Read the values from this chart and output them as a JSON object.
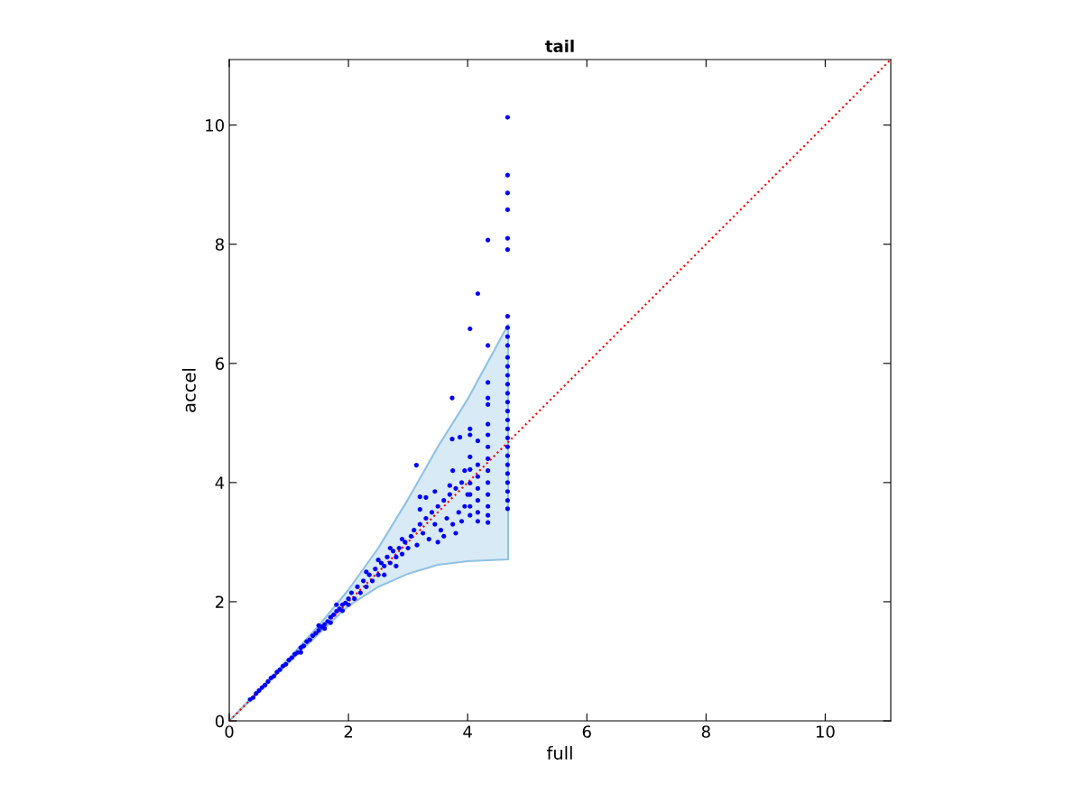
{
  "chart_data": {
    "type": "scatter",
    "title": "tail",
    "xlabel": "full",
    "ylabel": "accel",
    "xlim": [
      0,
      11.1
    ],
    "ylim": [
      0,
      11.1
    ],
    "xticks": [
      0,
      2,
      4,
      6,
      8,
      10
    ],
    "yticks": [
      0,
      2,
      4,
      6,
      8,
      10
    ],
    "grid": false,
    "series": [
      {
        "color": "#0000ff",
        "marker": "circle",
        "x": [
          0.35,
          0.4,
          0.45,
          0.5,
          0.55,
          0.6,
          0.65,
          0.7,
          0.75,
          0.8,
          0.85,
          0.9,
          0.95,
          1.0,
          1.05,
          1.1,
          1.15,
          1.2,
          1.25,
          1.3,
          1.35,
          1.4,
          1.45,
          1.5,
          1.55,
          1.6,
          1.65,
          1.7,
          1.75,
          1.8,
          1.85,
          1.9,
          1.95,
          2.0,
          1.2,
          1.5,
          1.7,
          1.8,
          1.9,
          2.0,
          1.6,
          2.05,
          2.1,
          2.15,
          2.2,
          2.25,
          2.3,
          2.35,
          2.4,
          2.45,
          2.5,
          2.55,
          2.6,
          2.65,
          2.7,
          2.75,
          2.8,
          2.85,
          2.9,
          2.95,
          3.0,
          2.5,
          2.7,
          2.9,
          2.3,
          2.6,
          2.8,
          3.05,
          3.1,
          3.15,
          3.2,
          3.25,
          3.3,
          3.35,
          3.4,
          3.45,
          3.5,
          3.55,
          3.6,
          3.65,
          3.7,
          3.75,
          3.8,
          3.85,
          3.9,
          3.95,
          4.0,
          3.3,
          3.45,
          3.6,
          3.7,
          3.8,
          3.9,
          3.2,
          3.5,
          3.75,
          3.95,
          3.14,
          3.2,
          3.74,
          3.74,
          3.87,
          4.04,
          4.04,
          4.04,
          4.04,
          4.04,
          4.04,
          4.04,
          4.04,
          4.04,
          4.17,
          4.17,
          4.17,
          4.17,
          4.17,
          4.17,
          4.17,
          4.17,
          4.34,
          4.34,
          4.34,
          4.34,
          4.34,
          4.34,
          4.34,
          4.34,
          4.34,
          4.34,
          4.34,
          4.34,
          4.34,
          4.34,
          4.34,
          4.67,
          4.67,
          4.67,
          4.67,
          4.67,
          4.67,
          4.67,
          4.67,
          4.67,
          4.67,
          4.67,
          4.67,
          4.67,
          4.67,
          4.67,
          4.67,
          4.67,
          4.67,
          4.67,
          4.67,
          4.67,
          4.67,
          4.67,
          4.67,
          4.67,
          4.67,
          4.67,
          4.67
        ],
        "values": [
          0.36,
          0.39,
          0.46,
          0.51,
          0.56,
          0.6,
          0.66,
          0.72,
          0.75,
          0.82,
          0.86,
          0.92,
          0.95,
          1.02,
          1.06,
          1.12,
          1.15,
          1.23,
          1.26,
          1.33,
          1.36,
          1.43,
          1.47,
          1.52,
          1.58,
          1.62,
          1.67,
          1.74,
          1.78,
          1.84,
          1.88,
          1.95,
          1.98,
          2.05,
          1.15,
          1.6,
          1.65,
          1.95,
          1.85,
          1.95,
          1.55,
          2.15,
          2.05,
          2.25,
          2.15,
          2.35,
          2.25,
          2.45,
          2.35,
          2.55,
          2.45,
          2.65,
          2.6,
          2.75,
          2.65,
          2.85,
          2.75,
          2.9,
          2.8,
          3.0,
          2.9,
          2.7,
          2.9,
          3.05,
          2.5,
          2.45,
          2.6,
          3.1,
          3.2,
          2.95,
          3.3,
          3.15,
          3.4,
          3.05,
          3.5,
          3.3,
          3.6,
          3.2,
          3.7,
          3.4,
          3.8,
          3.3,
          3.9,
          3.5,
          4.0,
          3.6,
          3.8,
          3.75,
          3.85,
          3.1,
          3.95,
          3.15,
          3.35,
          3.55,
          3.0,
          4.2,
          4.2,
          4.29,
          3.76,
          5.42,
          4.73,
          4.76,
          6.58,
          4.9,
          4.8,
          4.43,
          4.22,
          3.99,
          3.8,
          3.6,
          3.45,
          7.17,
          4.7,
          4.3,
          4.1,
          3.9,
          3.7,
          3.5,
          3.35,
          8.07,
          6.3,
          5.68,
          5.42,
          5.31,
          4.98,
          4.8,
          4.6,
          4.4,
          4.2,
          4.0,
          3.8,
          3.6,
          3.45,
          3.33,
          10.13,
          9.16,
          8.86,
          8.58,
          8.1,
          7.91,
          6.79,
          6.6,
          6.45,
          6.3,
          6.1,
          5.95,
          5.8,
          5.65,
          5.5,
          5.35,
          5.2,
          5.05,
          4.9,
          4.75,
          4.6,
          4.45,
          4.3,
          4.15,
          4.0,
          3.85,
          3.7,
          3.56
        ]
      },
      {
        "type": "line",
        "color": "#ff0000",
        "line_style": "dotted",
        "x": [
          0,
          0.5,
          1,
          1.5,
          2,
          2.5,
          3,
          3.5,
          4,
          4.68,
          11.1
        ],
        "values": [
          0,
          0.5,
          1,
          1.5,
          2,
          2.5,
          3,
          3.5,
          4,
          4.68,
          11.1
        ],
        "lower": [
          0,
          0.49,
          0.98,
          1.46,
          1.93,
          2.25,
          2.47,
          2.62,
          2.68,
          2.71,
          null
        ],
        "upper": [
          0,
          0.52,
          1.05,
          1.6,
          2.2,
          2.9,
          3.72,
          4.6,
          5.4,
          6.65,
          null
        ]
      }
    ]
  }
}
